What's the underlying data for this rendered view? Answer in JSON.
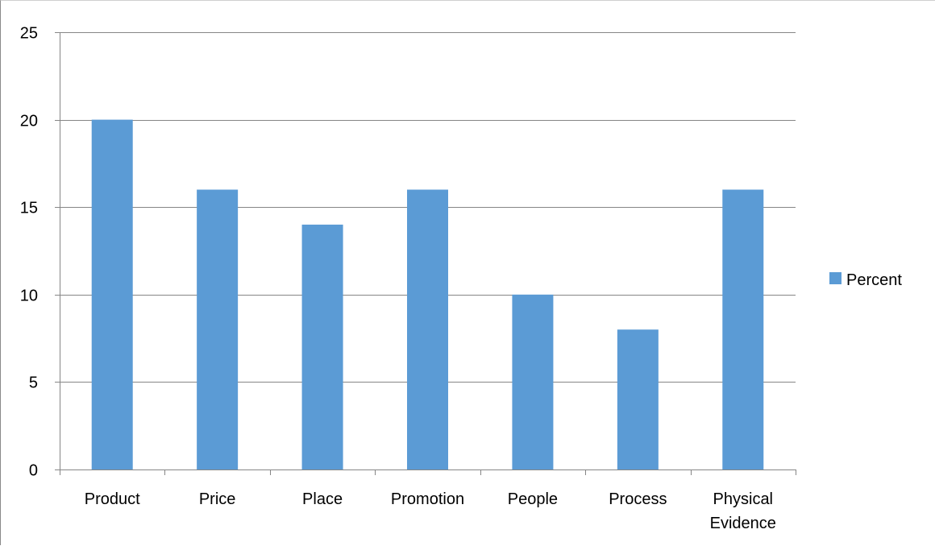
{
  "chart_data": {
    "type": "bar",
    "categories": [
      "Product",
      "Price",
      "Place",
      "Promotion",
      "People",
      "Process",
      "Physical Evidence"
    ],
    "series": [
      {
        "name": "Percent",
        "values": [
          20,
          16,
          14,
          16,
          10,
          8,
          16
        ],
        "color": "#5b9bd5"
      }
    ],
    "title": "",
    "xlabel": "",
    "ylabel": "",
    "ylim": [
      0,
      25
    ],
    "yticks": [
      0,
      5,
      10,
      15,
      20,
      25
    ],
    "grid": true,
    "legend": "right"
  }
}
